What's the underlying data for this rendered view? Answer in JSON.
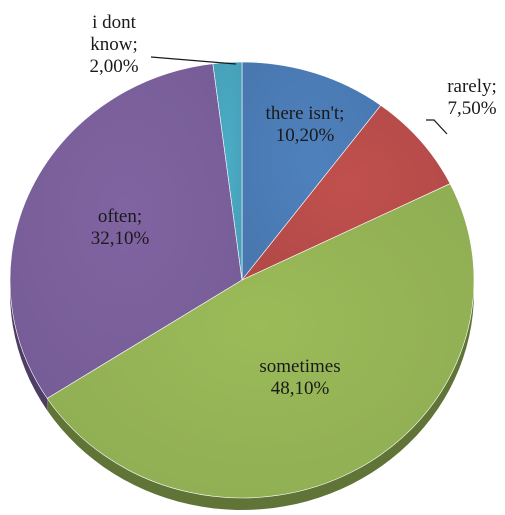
{
  "chart_data": {
    "type": "pie",
    "title": "",
    "slices": [
      {
        "name": "there isn't",
        "value": 10.2,
        "label": [
          "there isn't;",
          "10,20%"
        ],
        "color": "#4F81BD"
      },
      {
        "name": "rarely",
        "value": 7.5,
        "label": [
          "rarely;",
          "7,50%"
        ],
        "color": "#C0504D"
      },
      {
        "name": "sometimes",
        "value": 48.1,
        "label": [
          "sometimes",
          "48,10%"
        ],
        "color": "#9BBB59"
      },
      {
        "name": "often",
        "value": 32.1,
        "label": [
          "often;",
          "32,10%"
        ],
        "color": "#8064A2"
      },
      {
        "name": "i dont know",
        "value": 2.0,
        "label": [
          "i dont",
          "know;",
          "2,00%"
        ],
        "color": "#4BACC6"
      }
    ],
    "start_angle_deg": 0,
    "direction": "clockwise",
    "style": "3d-tilted"
  }
}
